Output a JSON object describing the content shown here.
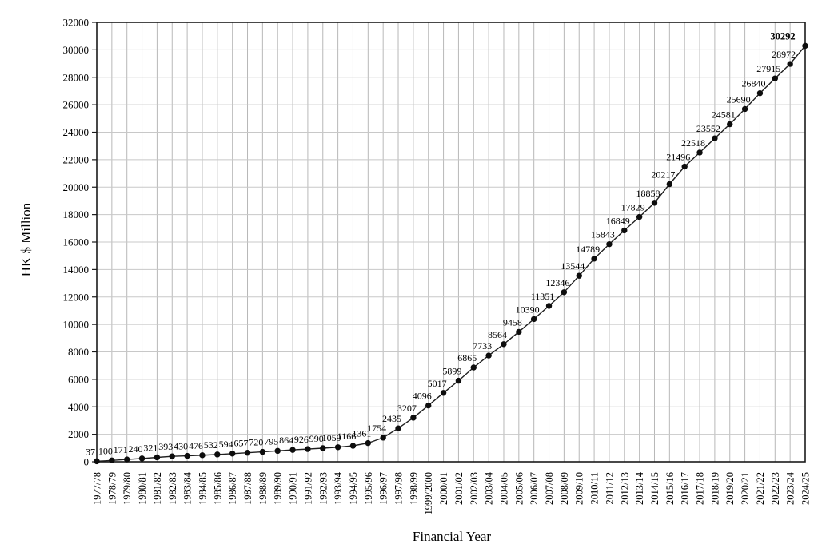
{
  "chart_data": {
    "type": "line",
    "title": "",
    "xlabel": "Financial Year",
    "ylabel": "HK $ Million",
    "ylim": [
      0,
      32000
    ],
    "ytick_step": 2000,
    "yticks": [
      0,
      2000,
      4000,
      6000,
      8000,
      10000,
      12000,
      14000,
      16000,
      18000,
      20000,
      22000,
      24000,
      26000,
      28000,
      30000,
      32000
    ],
    "grid": true,
    "legend": "none",
    "categories": [
      "1977/78",
      "1978/79",
      "1979/80",
      "1980/81",
      "1981/82",
      "1982/83",
      "1983/84",
      "1984/85",
      "1985/86",
      "1986/87",
      "1987/88",
      "1988/89",
      "1989/90",
      "1990/91",
      "1991/92",
      "1992/93",
      "1993/94",
      "1994/95",
      "1995/96",
      "1996/97",
      "1997/98",
      "1998/99",
      "1999/2000",
      "2000/01",
      "2001/02",
      "2002/03",
      "2003/04",
      "2004/05",
      "2005/06",
      "2006/07",
      "2007/08",
      "2008/09",
      "2009/10",
      "2010/11",
      "2011/12",
      "2012/13",
      "2013/14",
      "2014/15",
      "2015/16",
      "2016/17",
      "2017/18",
      "2018/19",
      "2019/20",
      "2020/21",
      "2021/22",
      "2022/23",
      "2023/24",
      "2024/25"
    ],
    "values": [
      37,
      100,
      171,
      240,
      321,
      393,
      430,
      476,
      532,
      594,
      657,
      720,
      795,
      864,
      926,
      990,
      1059,
      1166,
      1361,
      1754,
      2435,
      3207,
      4096,
      5017,
      5899,
      6865,
      7733,
      8564,
      9458,
      10390,
      11351,
      12346,
      13544,
      14789,
      15843,
      16849,
      17829,
      18858,
      20217,
      21496,
      22518,
      23552,
      24581,
      25690,
      26840,
      27915,
      28972,
      30292
    ],
    "data_labels_shown": true,
    "last_label_bold": true,
    "colors": {
      "line": "#1f1f1f",
      "marker": "#0d0d0d",
      "grid_vertical": "#b8b8b8",
      "grid_horizontal": "#c8c8c8",
      "axis": "#1a1a1a",
      "text": "#000000",
      "background": "#ffffff"
    }
  }
}
